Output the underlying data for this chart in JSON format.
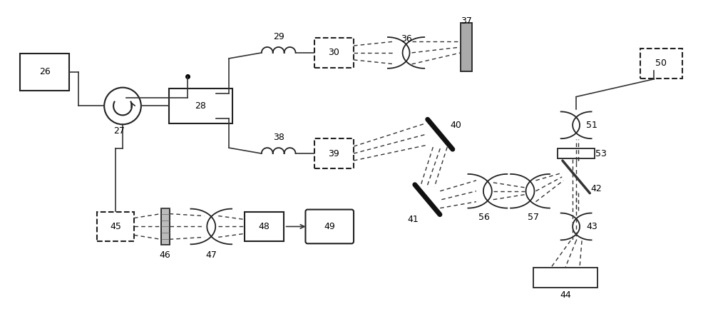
{
  "bg_color": "#ffffff",
  "figsize": [
    10.0,
    4.54
  ],
  "dpi": 100
}
